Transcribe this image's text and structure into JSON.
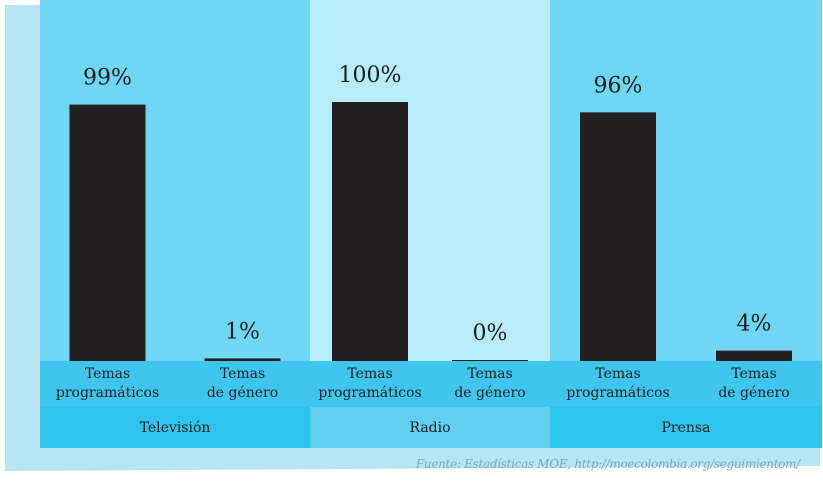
{
  "colors": {
    "frame": "#b6e6f4",
    "panel_dark": "#6fd6f3",
    "panel_light": "#b8ecf9",
    "label_row": "#3fc6ef",
    "group_row_dark": "#2ec4ee",
    "group_row_light": "#5fd0f1",
    "bar": "#231f20"
  },
  "chart_data": {
    "type": "bar",
    "ylim": [
      0,
      100
    ],
    "groups": [
      {
        "name": "Televisión",
        "bars": [
          {
            "label_line1": "Temas",
            "label_line2": "programáticos",
            "value": 99,
            "value_label": "99%"
          },
          {
            "label_line1": "Temas",
            "label_line2": "de género",
            "value": 1,
            "value_label": "1%"
          }
        ]
      },
      {
        "name": "Radio",
        "bars": [
          {
            "label_line1": "Temas",
            "label_line2": "programáticos",
            "value": 100,
            "value_label": "100%"
          },
          {
            "label_line1": "Temas",
            "label_line2": "de género",
            "value": 0,
            "value_label": "0%"
          }
        ]
      },
      {
        "name": "Prensa",
        "bars": [
          {
            "label_line1": "Temas",
            "label_line2": "programáticos",
            "value": 96,
            "value_label": "96%"
          },
          {
            "label_line1": "Temas",
            "label_line2": "de género",
            "value": 4,
            "value_label": "4%"
          }
        ]
      }
    ]
  },
  "source": "Fuente: Estadísticas MOE, http://moecolombia.org/seguimientom/"
}
